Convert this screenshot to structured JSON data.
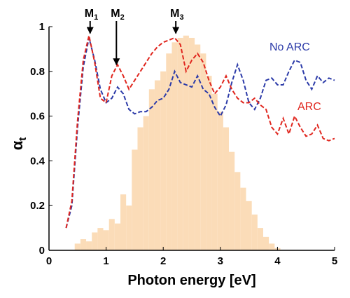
{
  "chart_data": {
    "type": "line",
    "xlabel": "Photon energy [eV]",
    "ylabel": "α",
    "ylabel_sub": "t",
    "xlim": [
      0,
      5
    ],
    "ylim": [
      0,
      1
    ],
    "xticks": [
      0,
      1,
      2,
      3,
      4,
      5
    ],
    "yticks": [
      0,
      0.2,
      0.4,
      0.6,
      0.8,
      1
    ],
    "x": [
      0.3,
      0.4,
      0.5,
      0.6,
      0.7,
      0.8,
      0.9,
      1.0,
      1.1,
      1.2,
      1.3,
      1.4,
      1.5,
      1.6,
      1.7,
      1.8,
      1.9,
      2.0,
      2.1,
      2.2,
      2.3,
      2.4,
      2.5,
      2.6,
      2.7,
      2.8,
      2.9,
      3.0,
      3.1,
      3.2,
      3.3,
      3.4,
      3.5,
      3.6,
      3.7,
      3.8,
      3.9,
      4.0,
      4.1,
      4.2,
      4.3,
      4.4,
      4.5,
      4.6,
      4.7,
      4.8,
      4.9,
      5.0
    ],
    "spectrum": {
      "color": "#fbdcb8",
      "values": [
        0,
        0,
        0.03,
        0.05,
        0.04,
        0.08,
        0.1,
        0.09,
        0.14,
        0.12,
        0.25,
        0.2,
        0.45,
        0.55,
        0.6,
        0.72,
        0.76,
        0.8,
        0.88,
        0.93,
        0.95,
        0.96,
        0.95,
        0.92,
        0.88,
        0.78,
        0.7,
        0.62,
        0.55,
        0.44,
        0.35,
        0.28,
        0.22,
        0.16,
        0.1,
        0.06,
        0.03,
        0.01,
        0,
        0,
        0,
        0,
        0,
        0,
        0,
        0,
        0,
        0
      ]
    },
    "series": [
      {
        "name": "No ARC",
        "color": "#2b3aa8",
        "values": [
          0.1,
          0.2,
          0.55,
          0.82,
          0.95,
          0.85,
          0.72,
          0.66,
          0.68,
          0.73,
          0.7,
          0.63,
          0.61,
          0.62,
          0.62,
          0.64,
          0.67,
          0.68,
          0.72,
          0.8,
          0.75,
          0.74,
          0.73,
          0.78,
          0.72,
          0.7,
          0.64,
          0.6,
          0.65,
          0.75,
          0.83,
          0.76,
          0.66,
          0.63,
          0.68,
          0.76,
          0.77,
          0.74,
          0.74,
          0.8,
          0.85,
          0.84,
          0.76,
          0.72,
          0.78,
          0.75,
          0.77,
          0.76
        ]
      },
      {
        "name": "ARC",
        "color": "#e0261e",
        "values": [
          0.1,
          0.22,
          0.58,
          0.85,
          0.96,
          0.84,
          0.68,
          0.66,
          0.78,
          0.83,
          0.78,
          0.72,
          0.76,
          0.8,
          0.84,
          0.88,
          0.91,
          0.93,
          0.94,
          0.95,
          0.92,
          0.8,
          0.85,
          0.88,
          0.84,
          0.76,
          0.7,
          0.73,
          0.78,
          0.72,
          0.68,
          0.66,
          0.66,
          0.68,
          0.65,
          0.63,
          0.55,
          0.52,
          0.59,
          0.52,
          0.6,
          0.55,
          0.51,
          0.52,
          0.56,
          0.5,
          0.49,
          0.5
        ]
      }
    ],
    "annotations": [
      {
        "label": "M",
        "sub": "1",
        "x": 0.72,
        "y": 0.97
      },
      {
        "label": "M",
        "sub": "2",
        "x": 1.18,
        "y": 0.83
      },
      {
        "label": "M",
        "sub": "3",
        "x": 2.22,
        "y": 0.97
      }
    ]
  }
}
